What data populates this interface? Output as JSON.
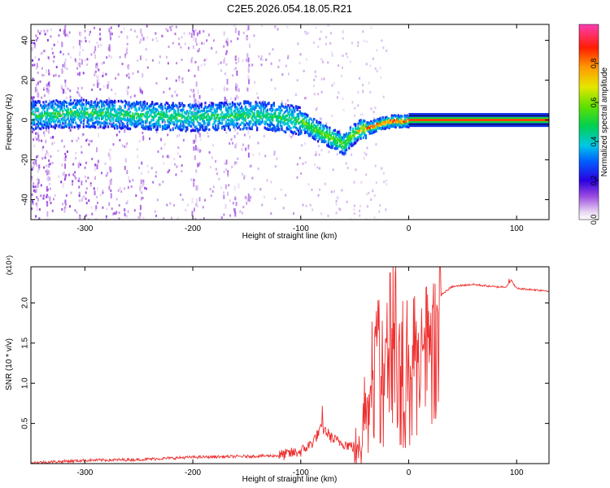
{
  "figure": {
    "title": "C2E5.2026.054.18.05.R21"
  },
  "chart_data": [
    {
      "type": "heatmap",
      "title": "C2E5.2026.054.18.05.R21",
      "xlabel": "Height of straight line (km)",
      "ylabel": "Frequency (Hz)",
      "xlim": [
        -350,
        130
      ],
      "ylim": [
        -50,
        48
      ],
      "xticks": [
        -300,
        -200,
        -100,
        0,
        100
      ],
      "yticks": [
        -40,
        -20,
        0,
        20,
        40
      ],
      "colorbar": {
        "label": "Normalized spectral amplitude",
        "range": [
          0.0,
          1.0
        ],
        "ticks": [
          0.0,
          0.2,
          0.4,
          0.6,
          0.8
        ],
        "tick_labels": [
          "0.0",
          "0.2",
          "0.4",
          "0.6",
          "0.8"
        ]
      },
      "ridge": {
        "height_km": [
          -350,
          -300,
          -250,
          -200,
          -150,
          -120,
          -100,
          -85,
          -70,
          -60,
          -55,
          -45,
          -35,
          -25,
          -15,
          -5,
          0,
          130
        ],
        "frequency_hz": [
          3,
          4,
          3,
          2,
          3,
          2,
          0,
          -5,
          -9,
          -12,
          -8,
          -4,
          -3,
          -1,
          0,
          0,
          0,
          0
        ]
      }
    },
    {
      "type": "line",
      "title": "",
      "xlabel": "Height of straight line (km)",
      "ylabel": "SNR (10 * v/v)",
      "y_multiplier": "(x10⁴)",
      "xlim": [
        -350,
        130
      ],
      "ylim": [
        0,
        2.45
      ],
      "xticks": [
        -300,
        -200,
        -100,
        0,
        100
      ],
      "yticks": [
        0.5,
        1.0,
        1.5,
        2.0
      ],
      "ytick_labels": [
        "0.5",
        "1.0",
        "1.5",
        "2.0"
      ],
      "series": [
        {
          "name": "SNR",
          "color": "#ee3030",
          "x": [
            -350,
            -300,
            -250,
            -200,
            -150,
            -120,
            -100,
            -90,
            -80,
            -70,
            -60,
            -50,
            -45,
            -40,
            -35,
            -30,
            -25,
            -20,
            -15,
            -10,
            -5,
            0,
            5,
            10,
            15,
            20,
            25,
            30,
            35,
            40,
            50,
            60,
            80,
            90,
            95,
            100,
            110,
            120,
            130
          ],
          "y": [
            0.01,
            0.04,
            0.05,
            0.08,
            0.09,
            0.1,
            0.15,
            0.25,
            0.45,
            0.3,
            0.25,
            0.2,
            0.35,
            0.8,
            1.2,
            1.6,
            1.8,
            1.7,
            2.0,
            1.9,
            1.6,
            1.5,
            1.55,
            1.65,
            1.8,
            1.95,
            2.05,
            2.1,
            2.15,
            2.2,
            2.22,
            2.23,
            2.2,
            2.2,
            2.28,
            2.18,
            2.17,
            2.16,
            2.15
          ],
          "spikes": [
            {
              "x": -80,
              "y": 0.72
            },
            {
              "x": -30,
              "y": 1.9
            },
            {
              "x": -20,
              "y": 2.0
            },
            {
              "x": -12,
              "y": 2.45
            },
            {
              "x": 93,
              "y": 2.3
            }
          ]
        }
      ]
    }
  ],
  "colors": {
    "background": "#ffffff",
    "axis": "#000000",
    "snr_line": "#ee3030"
  }
}
